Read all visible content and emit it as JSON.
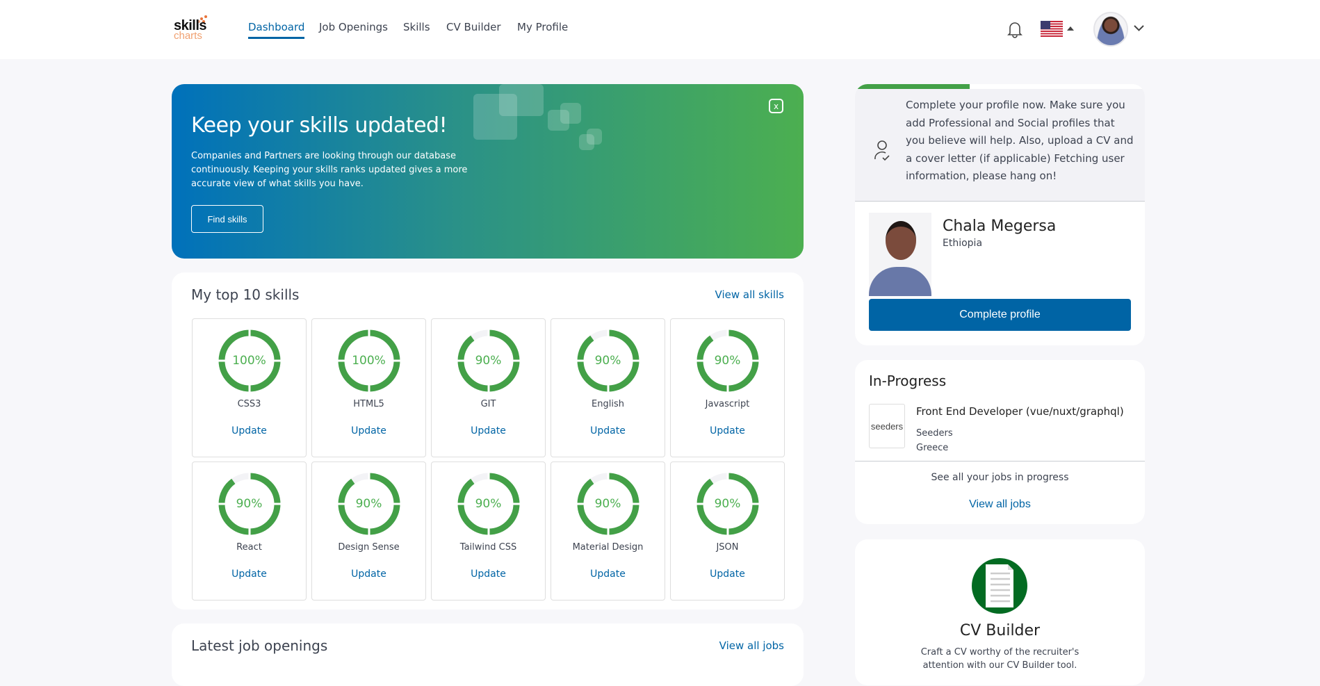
{
  "header": {
    "logo": {
      "line1": "skills",
      "line2": "charts"
    },
    "nav": [
      {
        "label": "Dashboard",
        "active": true
      },
      {
        "label": "Job Openings"
      },
      {
        "label": "Skills"
      },
      {
        "label": "CV Builder"
      },
      {
        "label": "My Profile"
      }
    ],
    "icons": {
      "notifications": "bell-icon",
      "language": "us-flag-icon",
      "account_menu": "chevron-down-icon"
    }
  },
  "banner": {
    "title": "Keep your skills updated!",
    "body": "Companies and Partners are looking through our database continuously. Keeping your skills ranks updated gives a more accurate view of what skills you have.",
    "button": "Find skills",
    "close": "x"
  },
  "skills": {
    "title": "My top 10 skills",
    "view_all": "View all skills",
    "update_label": "Update",
    "accent": "#43a047",
    "items": [
      {
        "name": "CSS3",
        "value": 100,
        "label": "100%"
      },
      {
        "name": "HTML5",
        "value": 100,
        "label": "100%"
      },
      {
        "name": "GIT",
        "value": 90,
        "label": "90%"
      },
      {
        "name": "English",
        "value": 90,
        "label": "90%"
      },
      {
        "name": "Javascript",
        "value": 90,
        "label": "90%"
      },
      {
        "name": "React",
        "value": 90,
        "label": "90%"
      },
      {
        "name": "Design Sense",
        "value": 90,
        "label": "90%"
      },
      {
        "name": "Tailwind CSS",
        "value": 90,
        "label": "90%"
      },
      {
        "name": "Material Design",
        "value": 90,
        "label": "90%"
      },
      {
        "name": "JSON",
        "value": 90,
        "label": "90%"
      }
    ]
  },
  "latest_jobs": {
    "title": "Latest job openings",
    "view_all": "View all jobs"
  },
  "profile": {
    "completion": 0.39,
    "message": "Complete your profile now. Make sure you add Professional and Social profiles that you believe will help. Also, upload a CV and a cover letter (if applicable) Fetching user information, please hang on!",
    "name": "Chala Megersa",
    "country": "Ethiopia",
    "button": "Complete profile"
  },
  "in_progress": {
    "title": "In-Progress",
    "job": {
      "title": "Front End Developer (vue/nuxt/graphql)",
      "company": "Seeders",
      "location": "Greece",
      "logo_text": "seeders"
    },
    "see_all": "See all your jobs in progress",
    "view_all": "View all jobs"
  },
  "cv_builder": {
    "title": "CV Builder",
    "description": "Craft a CV worthy of the recruiter's attention with our CV Builder tool."
  }
}
